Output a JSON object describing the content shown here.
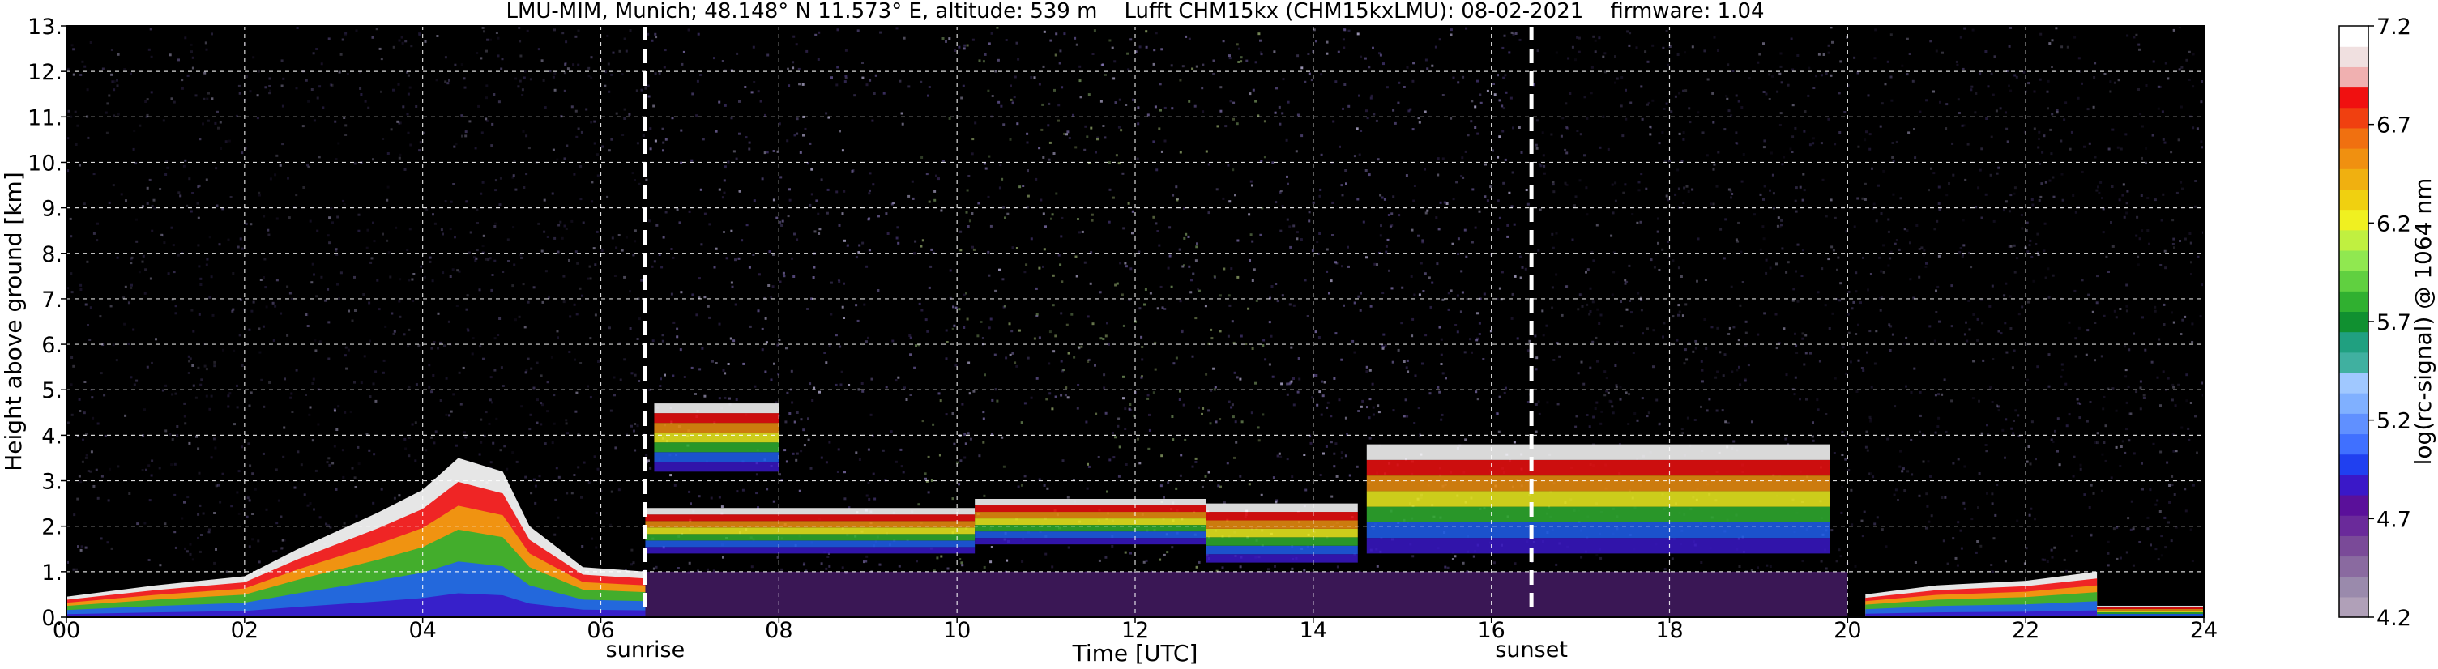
{
  "chart_data": {
    "type": "heatmap",
    "title": "LMU-MIM, Munich; 48.148° N 11.573° E, altitude: 539 m    Lufft CHM15kx (CHM15kxLMU): 08-02-2021    firmware: 1.04",
    "xlabel": "Time [UTC]",
    "ylabel": "Height above ground [km]",
    "xlim": [
      0,
      24
    ],
    "ylim": [
      0,
      13
    ],
    "xticks": [
      "00",
      "02",
      "04",
      "06",
      "08",
      "10",
      "12",
      "14",
      "16",
      "18",
      "20",
      "22",
      "24"
    ],
    "xtick_values": [
      0,
      2,
      4,
      6,
      8,
      10,
      12,
      14,
      16,
      18,
      20,
      22,
      24
    ],
    "yticks": [
      "0.",
      "1.",
      "2.",
      "3.",
      "4.",
      "5.",
      "6.",
      "7.",
      "8.",
      "9.",
      "10.",
      "11.",
      "12.",
      "13."
    ],
    "ytick_values": [
      0,
      1,
      2,
      3,
      4,
      5,
      6,
      7,
      8,
      9,
      10,
      11,
      12,
      13
    ],
    "grid": true,
    "background_color": "#000000",
    "noise_colors": [
      "#3a2a5a",
      "#6a5a9a",
      "#8878b8",
      "#c8c0e8",
      "#4a3a7a"
    ],
    "annotations": [
      {
        "label": "sunrise",
        "time": 6.5
      },
      {
        "label": "sunset",
        "time": 16.45
      }
    ],
    "colorbar": {
      "label": "log(rc-signal) @ 1064 nm",
      "min": 4.2,
      "max": 7.2,
      "tick_labels": [
        "4.2",
        "4.7",
        "5.2",
        "5.7",
        "6.2",
        "6.7",
        "7.2"
      ],
      "tick_values": [
        4.2,
        4.7,
        5.2,
        5.7,
        6.2,
        6.7,
        7.2
      ],
      "colors": [
        "#b0a0b8",
        "#9a8aac",
        "#8a6aa0",
        "#7a4a98",
        "#6a2a9a",
        "#5a109a",
        "#3a18c8",
        "#2040f0",
        "#4070ff",
        "#6090ff",
        "#80b0ff",
        "#a0c8ff",
        "#40b0a0",
        "#20a080",
        "#109030",
        "#30b030",
        "#60d040",
        "#90e850",
        "#c0f040",
        "#f0f020",
        "#f0d010",
        "#f0b010",
        "#f09010",
        "#f07010",
        "#f04010",
        "#f01010",
        "#f0b0b0",
        "#f0e0e0",
        "#ffffff"
      ]
    },
    "features": [
      {
        "kind": "boundary-layer",
        "t_start": 0.0,
        "t_end": 6.5,
        "profile": [
          [
            0,
            0.45
          ],
          [
            1.0,
            0.7
          ],
          [
            2.0,
            0.9
          ],
          [
            2.6,
            1.5
          ],
          [
            3.5,
            2.3
          ],
          [
            4.0,
            2.8
          ],
          [
            4.4,
            3.5
          ],
          [
            4.9,
            3.2
          ],
          [
            5.2,
            2.0
          ],
          [
            5.8,
            1.1
          ],
          [
            6.5,
            1.0
          ]
        ]
      },
      {
        "kind": "cloud-layer",
        "t_start": 6.5,
        "t_end": 10.2,
        "base_km": 1.4,
        "top_km": 2.4
      },
      {
        "kind": "elevated-layer",
        "t_start": 6.6,
        "t_end": 8.0,
        "base_km": 3.2,
        "top_km": 4.7
      },
      {
        "kind": "cloud-layer",
        "t_start": 10.2,
        "t_end": 12.8,
        "base_km": 1.6,
        "top_km": 2.6
      },
      {
        "kind": "broken-clouds",
        "t_start": 12.8,
        "t_end": 14.5,
        "base_km": 1.2,
        "top_km": 2.5
      },
      {
        "kind": "cloud-layer",
        "t_start": 14.6,
        "t_end": 19.8,
        "base_km": 1.4,
        "top_km": 3.8
      },
      {
        "kind": "boundary-layer",
        "t_start": 20.2,
        "t_end": 22.8,
        "profile": [
          [
            20.2,
            0.5
          ],
          [
            21.0,
            0.7
          ],
          [
            22.0,
            0.8
          ],
          [
            22.8,
            1.0
          ]
        ]
      },
      {
        "kind": "thin-surface",
        "t_start": 22.8,
        "t_end": 24.0,
        "base_km": 0.0,
        "top_km": 0.25
      }
    ]
  }
}
